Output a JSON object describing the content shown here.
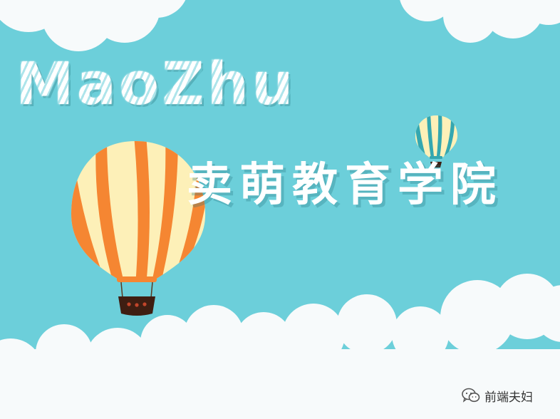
{
  "banner": {
    "title_en": "MaoZhu",
    "title_cn": "卖萌教育学院"
  },
  "watermark": {
    "icon": "wechat-icon",
    "text": "前端夫妇"
  },
  "colors": {
    "sky": "#6ccfda",
    "cloud": "#f7fafb",
    "balloon_orange": "#f58632",
    "balloon_cream": "#fdf0b8",
    "balloon_teal": "#34a7b0",
    "basket": "#3e1e12"
  }
}
